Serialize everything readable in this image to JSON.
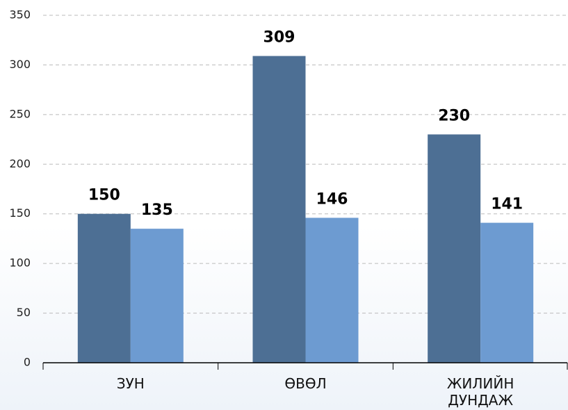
{
  "chart_data": {
    "type": "bar",
    "categories": [
      "ЗУН",
      "ӨВӨЛ",
      "ЖИЛИЙН ДУНДАЖ"
    ],
    "series": [
      {
        "color": "#4d6f94",
        "values": [
          150,
          309,
          230
        ]
      },
      {
        "color": "#6d9bd1",
        "values": [
          135,
          146,
          141
        ]
      }
    ],
    "ylim": [
      0,
      350
    ],
    "yticks": [
      0,
      50,
      100,
      150,
      200,
      250,
      300,
      350
    ],
    "grid": true
  }
}
